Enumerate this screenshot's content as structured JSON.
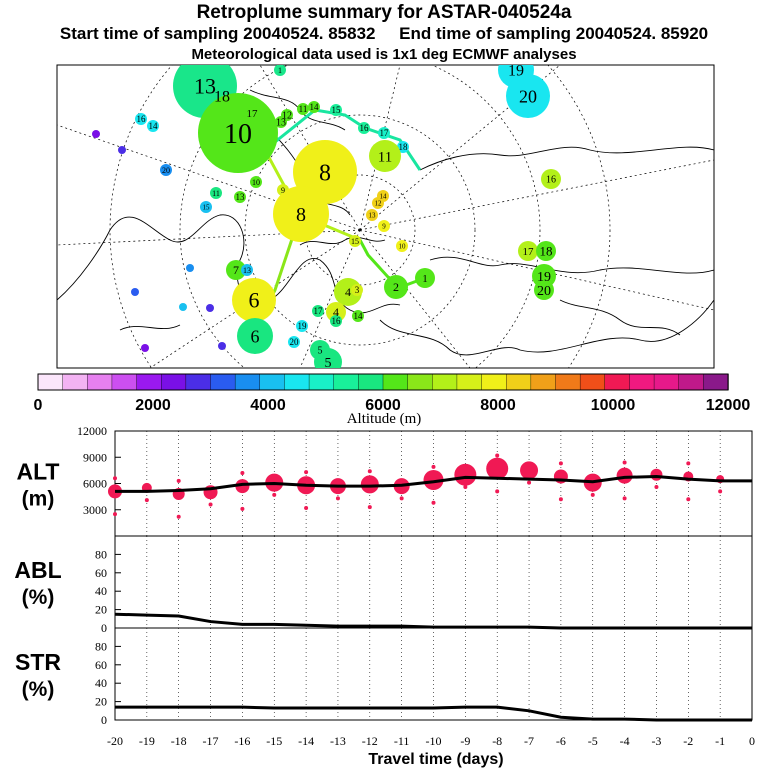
{
  "header": {
    "title": "Retroplume summary for ASTAR-040524a",
    "sub_start": "Start time of sampling 20040524. 85832",
    "sub_end": "End time of sampling 20040524. 85920",
    "sub_met": "Meteorological data used is 1x1 deg ECMWF analyses"
  },
  "colorbar": {
    "label": "Altitude (m)",
    "ticks": [
      "0",
      "2000",
      "4000",
      "6000",
      "8000",
      "10000",
      "12000"
    ],
    "colors": [
      "#fbe6fb",
      "#f3b3f3",
      "#e680ef",
      "#cc4ff0",
      "#9a19ef",
      "#7a10e6",
      "#4b2ee6",
      "#2a5cf0",
      "#198ef0",
      "#19c0f0",
      "#19e6f0",
      "#19f0c8",
      "#19f09a",
      "#19e680",
      "#54e619",
      "#8ae619",
      "#b3f019",
      "#d6f019",
      "#f0f019",
      "#f0d019",
      "#f0a019",
      "#f07a19",
      "#f04f19",
      "#f01954",
      "#f01980",
      "#e6198a",
      "#c0198a",
      "#8a198a"
    ]
  },
  "map_labels": [
    {
      "t": "13",
      "c": "#19e68a"
    },
    {
      "t": "18",
      "c": "#19e68a"
    },
    {
      "t": "10",
      "c": "#54e619"
    },
    {
      "t": "17",
      "c": "#54e619"
    },
    {
      "t": "13",
      "c": "#54e619"
    },
    {
      "t": "12",
      "c": "#54e619"
    },
    {
      "t": "11",
      "c": "#54e619"
    },
    {
      "t": "14",
      "c": "#54e619"
    },
    {
      "t": "15",
      "c": "#19f09a"
    },
    {
      "t": "16",
      "c": "#19f09a"
    },
    {
      "t": "17",
      "c": "#19f0c8"
    },
    {
      "t": "18",
      "c": "#19e6f0"
    },
    {
      "t": "11",
      "c": "#b3f019"
    },
    {
      "t": "19",
      "c": "#19e6f0"
    },
    {
      "t": "20",
      "c": "#19e6f0"
    },
    {
      "t": "16",
      "c": "#b3f019"
    },
    {
      "t": "8",
      "c": "#f0f019"
    },
    {
      "t": "9",
      "c": "#d6f019"
    },
    {
      "t": "8",
      "c": "#f0f019"
    },
    {
      "t": "10",
      "c": "#54e619"
    },
    {
      "t": "16",
      "c": "#19e6f0"
    },
    {
      "t": "14",
      "c": "#19e6f0"
    },
    {
      "t": "20",
      "c": "#198ef0"
    },
    {
      "t": "11",
      "c": "#19e680"
    },
    {
      "t": "13",
      "c": "#54e619"
    },
    {
      "t": "15",
      "c": "#19c0f0"
    },
    {
      "t": "14",
      "c": "#f0d019"
    },
    {
      "t": "12",
      "c": "#f0d019"
    },
    {
      "t": "13",
      "c": "#f0d019"
    },
    {
      "t": "9",
      "c": "#f0f019"
    },
    {
      "t": "15",
      "c": "#d6f019"
    },
    {
      "t": "10",
      "c": "#f0f019"
    },
    {
      "t": "17",
      "c": "#b3f019"
    },
    {
      "t": "18",
      "c": "#54e619"
    },
    {
      "t": "19",
      "c": "#54e619"
    },
    {
      "t": "20",
      "c": "#54e619"
    },
    {
      "t": "7",
      "c": "#54e619"
    },
    {
      "t": "13",
      "c": "#19c0f0"
    },
    {
      "t": "6",
      "c": "#f0f019"
    },
    {
      "t": "6",
      "c": "#19e680"
    },
    {
      "t": "4",
      "c": "#b3f019"
    },
    {
      "t": "3",
      "c": "#d6f019"
    },
    {
      "t": "2",
      "c": "#54e619"
    },
    {
      "t": "1",
      "c": "#54e619"
    },
    {
      "t": "4",
      "c": "#d6f019"
    },
    {
      "t": "19",
      "c": "#19e6f0"
    },
    {
      "t": "20",
      "c": "#19e6f0"
    },
    {
      "t": "5",
      "c": "#19e680"
    },
    {
      "t": "5",
      "c": "#19e680"
    },
    {
      "t": "17",
      "c": "#19e680"
    },
    {
      "t": "16",
      "c": "#19e680"
    },
    {
      "t": "14",
      "c": "#54e619"
    },
    {
      "t": "1",
      "c": "#19e68a"
    }
  ],
  "chart_data": [
    {
      "type": "scatter",
      "name": "ALT",
      "ylabel": "ALT\n(m)",
      "ylabel_line1": "ALT",
      "ylabel_line2": "(m)",
      "ylim": [
        0,
        12000
      ],
      "yticks": [
        "12000",
        "9000",
        "6000",
        "3000"
      ],
      "ytick_values": [
        12000,
        9000,
        6000,
        3000
      ],
      "x": [
        -20,
        -19,
        -18,
        -17,
        -16,
        -15,
        -14,
        -13,
        -12,
        -11,
        -10,
        -9,
        -8,
        -7,
        -6,
        -5,
        -4,
        -3,
        -2,
        -1,
        0
      ],
      "mean_altitude": [
        5100,
        5100,
        5200,
        5400,
        5900,
        6000,
        5800,
        5700,
        5700,
        5800,
        6200,
        6700,
        6600,
        6500,
        6400,
        6200,
        6700,
        6800,
        6500,
        6300,
        6300
      ],
      "main_bubble_altitude": [
        5100,
        5500,
        4800,
        5000,
        5700,
        6100,
        5800,
        5700,
        5900,
        5700,
        6400,
        7000,
        7700,
        7500,
        6800,
        6100,
        6900,
        7000,
        6800,
        6500,
        null
      ],
      "main_bubble_size": [
        7,
        5,
        6,
        7,
        7,
        9,
        9,
        8,
        9,
        8,
        10,
        11,
        11,
        9,
        7,
        9,
        8,
        6,
        5,
        4,
        null
      ]
    },
    {
      "type": "line",
      "name": "ABL",
      "ylabel_line1": "ABL",
      "ylabel_line2": "(%)",
      "ylim": [
        0,
        100
      ],
      "yticks": [
        "80",
        "60",
        "40",
        "20",
        "0"
      ],
      "ytick_values": [
        80,
        60,
        40,
        20,
        0
      ],
      "x": [
        -20,
        -19,
        -18,
        -17,
        -16,
        -15,
        -14,
        -13,
        -12,
        -11,
        -10,
        -9,
        -8,
        -7,
        -6,
        -5,
        -4,
        -3,
        -2,
        -1,
        0
      ],
      "values": [
        15,
        14,
        13,
        7,
        4,
        4,
        3,
        2,
        2,
        2,
        1,
        1,
        1,
        1,
        0,
        0,
        0,
        0,
        0,
        0,
        0
      ]
    },
    {
      "type": "line",
      "name": "STR",
      "ylabel_line1": "STR",
      "ylabel_line2": "(%)",
      "ylim": [
        0,
        100
      ],
      "yticks": [
        "80",
        "60",
        "40",
        "20",
        "0"
      ],
      "ytick_values": [
        80,
        60,
        40,
        20,
        0
      ],
      "x": [
        -20,
        -19,
        -18,
        -17,
        -16,
        -15,
        -14,
        -13,
        -12,
        -11,
        -10,
        -9,
        -8,
        -7,
        -6,
        -5,
        -4,
        -3,
        -2,
        -1,
        0
      ],
      "values": [
        14,
        14,
        14,
        14,
        14,
        13,
        13,
        13,
        13,
        13,
        13,
        14,
        14,
        10,
        3,
        1,
        1,
        0,
        0,
        0,
        0
      ],
      "xlabel": "Travel time (days)",
      "xticks": [
        "-20",
        "-19",
        "-18",
        "-17",
        "-16",
        "-15",
        "-14",
        "-13",
        "-12",
        "-11",
        "-10",
        "-9",
        "-8",
        "-7",
        "-6",
        "-5",
        "-4",
        "-3",
        "-2",
        "-1",
        "0"
      ]
    }
  ]
}
